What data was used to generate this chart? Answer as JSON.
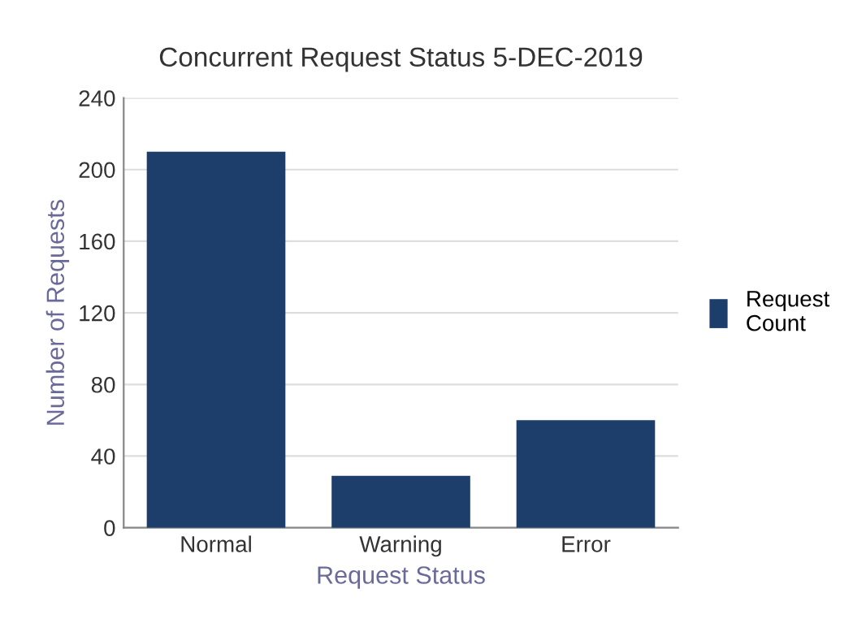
{
  "chart_data": {
    "type": "bar",
    "title": "Concurrent Request Status 5-DEC-2019",
    "xlabel": "Request Status",
    "ylabel": "Number of Requests",
    "categories": [
      "Normal",
      "Warning",
      "Error"
    ],
    "series": [
      {
        "name": "Request Count",
        "color": "#1d3d6b",
        "values": [
          210,
          29,
          60
        ]
      }
    ],
    "ylim": [
      0,
      240
    ],
    "yticks": [
      0,
      40,
      80,
      120,
      160,
      200,
      240
    ],
    "grid": "y",
    "legend": "right"
  }
}
